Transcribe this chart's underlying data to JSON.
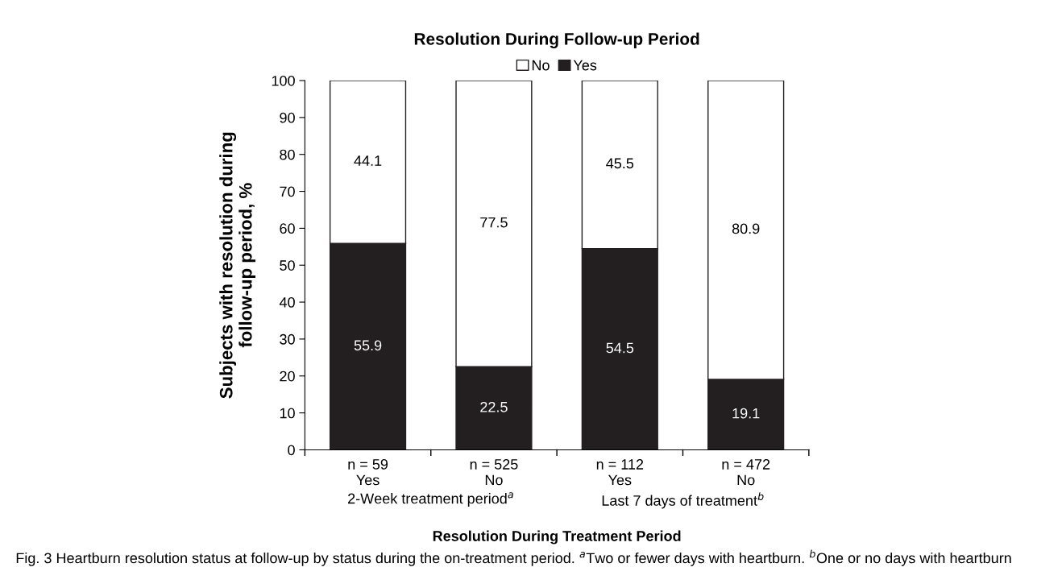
{
  "chart_data": {
    "type": "bar",
    "title": "Resolution During Follow-up Period",
    "xlabel": "Resolution During Treatment Period",
    "ylabel": "Subjects with resolution during\nfollow-up period, %",
    "categories": [
      "n = 59\nYes",
      "n = 525\nNo",
      "n = 112\nYes",
      "n = 472\nNo"
    ],
    "series": [
      {
        "name": "Yes",
        "color": "#231f20",
        "values": [
          55.9,
          22.5,
          54.5,
          19.1
        ]
      },
      {
        "name": "No",
        "color": "#ffffff",
        "values": [
          44.1,
          77.5,
          45.5,
          80.9
        ]
      }
    ],
    "stacked": true,
    "data_labels": true,
    "ylim": [
      0,
      100
    ],
    "yticks": [
      0,
      10,
      20,
      30,
      40,
      50,
      60,
      70,
      80,
      90,
      100
    ],
    "grid": false,
    "legend": "top",
    "annotations": [
      "2-Week treatment period$^{a}$",
      "Last 7 days of treatment$^{b}$",
      "Fig. 3 Heartburn resolution status at follow-up by status during the on-treatment period. $^{a}$Two or fewer days with heartburn. $^{b}$One or no days with heartburn"
    ]
  }
}
